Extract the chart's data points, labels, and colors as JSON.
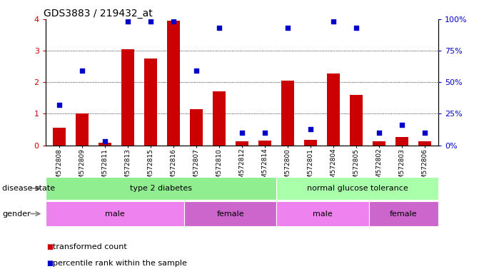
{
  "title": "GDS3883 / 219432_at",
  "samples": [
    "GSM572808",
    "GSM572809",
    "GSM572811",
    "GSM572813",
    "GSM572815",
    "GSM572816",
    "GSM572807",
    "GSM572810",
    "GSM572812",
    "GSM572814",
    "GSM572800",
    "GSM572801",
    "GSM572804",
    "GSM572805",
    "GSM572802",
    "GSM572803",
    "GSM572806"
  ],
  "bar_values": [
    0.55,
    1.0,
    0.08,
    3.05,
    2.75,
    3.95,
    1.15,
    1.72,
    0.12,
    0.15,
    2.05,
    0.18,
    2.28,
    1.6,
    0.12,
    0.25,
    0.12
  ],
  "dot_values_pct": [
    32,
    59,
    3,
    98,
    98,
    98,
    59,
    93,
    10,
    10,
    93,
    13,
    98,
    93,
    10,
    16,
    10
  ],
  "bar_color": "#cc0000",
  "dot_color": "#0000cc",
  "ylim_left": [
    0,
    4
  ],
  "ylim_right": [
    0,
    100
  ],
  "yticks_left": [
    0,
    1,
    2,
    3,
    4
  ],
  "yticks_right": [
    0,
    25,
    50,
    75,
    100
  ],
  "ytick_right_labels": [
    "0%",
    "25%",
    "50%",
    "75%",
    "100%"
  ],
  "disease_state_groups": [
    {
      "label": "type 2 diabetes",
      "start": 0,
      "end": 9,
      "color": "#90ee90"
    },
    {
      "label": "normal glucose tolerance",
      "start": 10,
      "end": 16,
      "color": "#aaffaa"
    }
  ],
  "gender_groups": [
    {
      "label": "male",
      "start": 0,
      "end": 5,
      "color": "#ee82ee"
    },
    {
      "label": "female",
      "start": 6,
      "end": 9,
      "color": "#cc66cc"
    },
    {
      "label": "male",
      "start": 10,
      "end": 13,
      "color": "#ee82ee"
    },
    {
      "label": "female",
      "start": 14,
      "end": 16,
      "color": "#cc66cc"
    }
  ],
  "legend_items": [
    {
      "label": "transformed count",
      "color": "#cc0000"
    },
    {
      "label": "percentile rank within the sample",
      "color": "#0000cc"
    }
  ],
  "ds_label": "disease state",
  "gender_label": "gender",
  "background_color": "#ffffff"
}
